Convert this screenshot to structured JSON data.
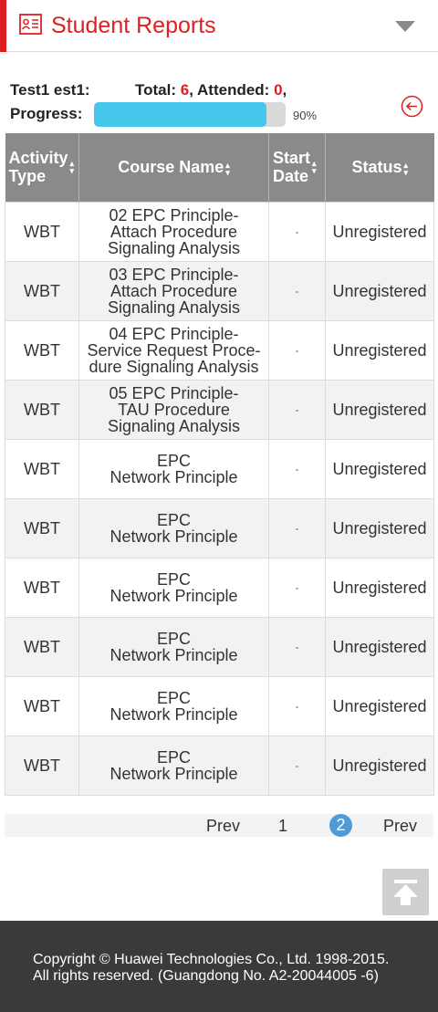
{
  "header": {
    "title": "Student Reports",
    "icon": "report-card-icon",
    "dropdown_icon": "triangle-down-icon",
    "accent_color": "#e02020"
  },
  "summary": {
    "user": "Test1 est1:",
    "total_label": "Total: ",
    "total_value": "6",
    "attended_label": ", Attended: ",
    "attended_value": "0",
    "attended_suffix": ",",
    "progress_label": "Progress:",
    "progress_percent": 90,
    "progress_text": "90%",
    "progress_color": "#46c8ec",
    "back_icon": "circle-arrow-left-icon"
  },
  "table": {
    "headers": {
      "activity_type": "Activity Type",
      "course_name": "Course Name",
      "start_date": "Start Date",
      "status": "Status"
    },
    "header_lines": {
      "activity_type": [
        "Activity",
        "Type"
      ],
      "start_date": [
        "Start",
        "Date"
      ]
    },
    "rows": [
      {
        "type": "WBT",
        "course_lines": [
          "02 EPC Principle-",
          "Attach Procedure",
          "Signaling Analysis"
        ],
        "date": "-",
        "status": "Unregistered"
      },
      {
        "type": "WBT",
        "course_lines": [
          "03 EPC Principle-",
          "Attach Procedure",
          "Signaling Analysis"
        ],
        "date": "-",
        "status": "Unregistered"
      },
      {
        "type": "WBT",
        "course_lines": [
          "04 EPC Principle-",
          "Service Request Proce-",
          "dure Signaling Analysis"
        ],
        "date": "-",
        "status": "Unregistered"
      },
      {
        "type": "WBT",
        "course_lines": [
          "05 EPC Principle-",
          "TAU Procedure",
          "Signaling Analysis"
        ],
        "date": "-",
        "status": "Unregistered"
      },
      {
        "type": "WBT",
        "course_lines": [
          "EPC",
          "Network Principle"
        ],
        "date": "-",
        "status": "Unregistered"
      },
      {
        "type": "WBT",
        "course_lines": [
          "EPC",
          "Network Principle"
        ],
        "date": "-",
        "status": "Unregistered"
      },
      {
        "type": "WBT",
        "course_lines": [
          "EPC",
          "Network Principle"
        ],
        "date": "-",
        "status": "Unregistered"
      },
      {
        "type": "WBT",
        "course_lines": [
          "EPC",
          "Network Principle"
        ],
        "date": "-",
        "status": "Unregistered"
      },
      {
        "type": "WBT",
        "course_lines": [
          "EPC",
          "Network Principle"
        ],
        "date": "-",
        "status": "Unregistered"
      },
      {
        "type": "WBT",
        "course_lines": [
          "EPC",
          "Network Principle"
        ],
        "date": "-",
        "status": "Unregistered"
      }
    ]
  },
  "pagination": {
    "prev_label": "Prev",
    "pages": [
      "1",
      "2"
    ],
    "current_page": "2",
    "next_label": "Prev"
  },
  "back_to_top_icon": "arrow-up-to-top-icon",
  "footer": {
    "line1": "Copyright © Huawei Technologies Co., Ltd. 1998-2015.",
    "line2": "All rights reserved. (Guangdong No. A2-20044005 -6)"
  }
}
